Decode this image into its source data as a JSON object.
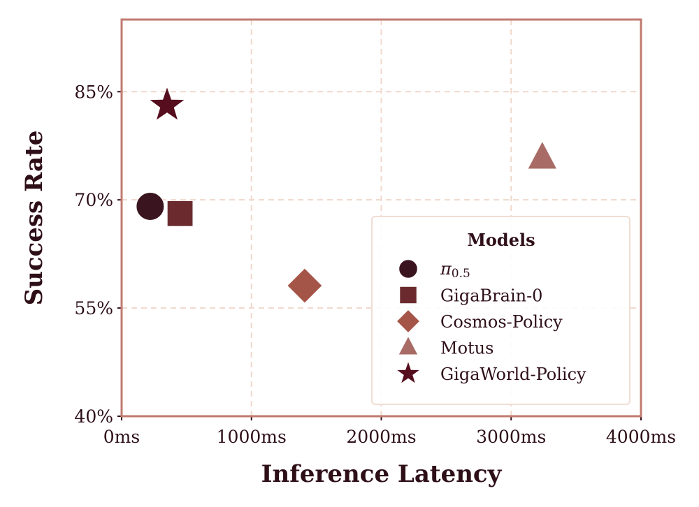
{
  "chart_data": {
    "type": "scatter",
    "title": "",
    "xlabel": "Inference Latency",
    "ylabel": "Success Rate",
    "xlim": [
      0,
      4000
    ],
    "ylim": [
      40,
      95
    ],
    "xticks": [
      0,
      1000,
      2000,
      3000,
      4000
    ],
    "xtick_labels": [
      "0ms",
      "1000ms",
      "2000ms",
      "3000ms",
      "4000ms"
    ],
    "yticks": [
      40,
      55,
      70,
      85
    ],
    "ytick_labels": [
      "40%",
      "55%",
      "70%",
      "85%"
    ],
    "grid": true,
    "legend": {
      "title": "Models",
      "placement": "lower-right"
    },
    "series": [
      {
        "name": "π0.5",
        "label_main": "π",
        "label_sub": "0.5",
        "marker": "circle",
        "color": "#3a1520",
        "x": 220,
        "y": 69.1
      },
      {
        "name": "GigaBrain-0",
        "marker": "square",
        "color": "#6b2b2e",
        "x": 450,
        "y": 68.1
      },
      {
        "name": "Cosmos-Policy",
        "marker": "diamond",
        "color": "#a55548",
        "x": 1410,
        "y": 58.1
      },
      {
        "name": "Motus",
        "marker": "triangle",
        "color": "#a86b66",
        "x": 3240,
        "y": 75.8
      },
      {
        "name": "GigaWorld-Policy",
        "marker": "star",
        "color": "#560e1f",
        "x": 350,
        "y": 83.1
      }
    ],
    "colors": {
      "frame": "#c07a70",
      "grid": "#f0d8cc",
      "text": "#2e0f18"
    }
  }
}
